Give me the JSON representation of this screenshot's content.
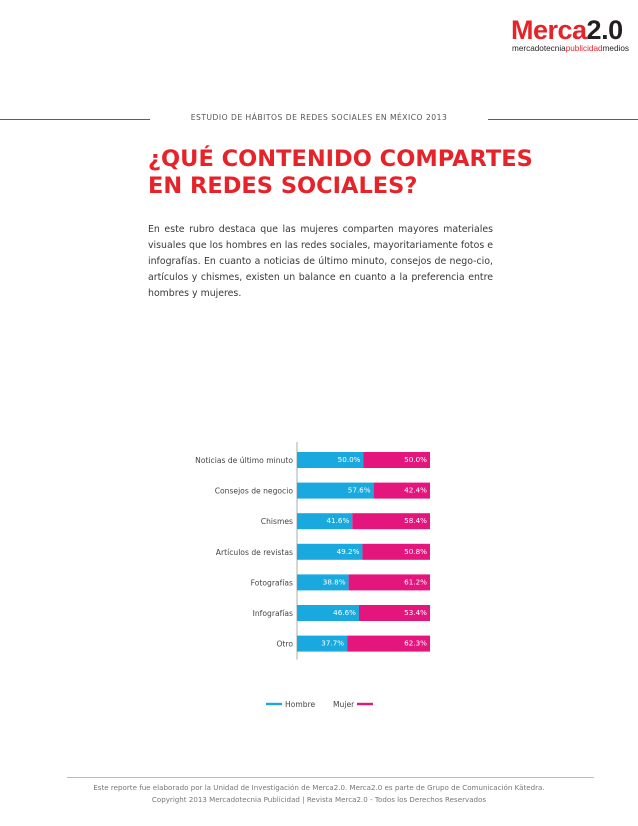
{
  "logo": {
    "brand": "Merca",
    "version": "2.0",
    "sub_part1": "mercadotecnia",
    "sub_part2": "publicidad",
    "sub_part3": "medios"
  },
  "header": {
    "study_label": "ESTUDIO DE HÁBITOS DE REDES SOCIALES EN MÉXICO 2013"
  },
  "title": "¿QUÉ CONTENIDO COMPARTES EN REDES SOCIALES?",
  "intro": "En este rubro destaca que las mujeres comparten mayores materiales visuales que los hombres en las redes sociales, mayoritariamente fotos e infografías. En cuanto a noticias de último minuto, consejos de nego-cio, artículos y chismes, existen un balance en cuanto a la preferencia entre hombres y mujeres.",
  "colors": {
    "hombre": "#1aa9df",
    "mujer": "#e4157d",
    "accent": "#e52329"
  },
  "chart_data": {
    "type": "bar",
    "orientation": "horizontal",
    "stacked": true,
    "percent": true,
    "categories": [
      "Noticias de último minuto",
      "Consejos de negocio",
      "Chismes",
      "Artículos de revistas",
      "Fotografías",
      "Infografías",
      "Otro"
    ],
    "series": [
      {
        "name": "Hombre",
        "values": [
          50.0,
          57.6,
          41.6,
          49.2,
          38.8,
          46.6,
          37.7
        ],
        "labels": [
          "50.0%",
          "57.6%",
          "41.6%",
          "49.2%",
          "38.8%",
          "46.6%",
          "37.7%"
        ]
      },
      {
        "name": "Mujer",
        "values": [
          50.0,
          42.4,
          58.4,
          50.8,
          61.2,
          53.4,
          62.3
        ],
        "labels": [
          "50.0%",
          "42.4%",
          "58.4%",
          "50.8%",
          "61.2%",
          "53.4%",
          "62.3%"
        ]
      }
    ],
    "xlim": [
      0,
      100
    ],
    "legend": "bottom"
  },
  "footer": {
    "line1": "Este reporte fue elaborado por la Unidad de Investigación de Merca2.0. Merca2.0 es parte de Grupo de Comunicación Kätedra.",
    "line2": "Copyright 2013 Mercadotecnia Publicidad | Revista Merca2.0 - Todos los Derechos Reservados"
  }
}
